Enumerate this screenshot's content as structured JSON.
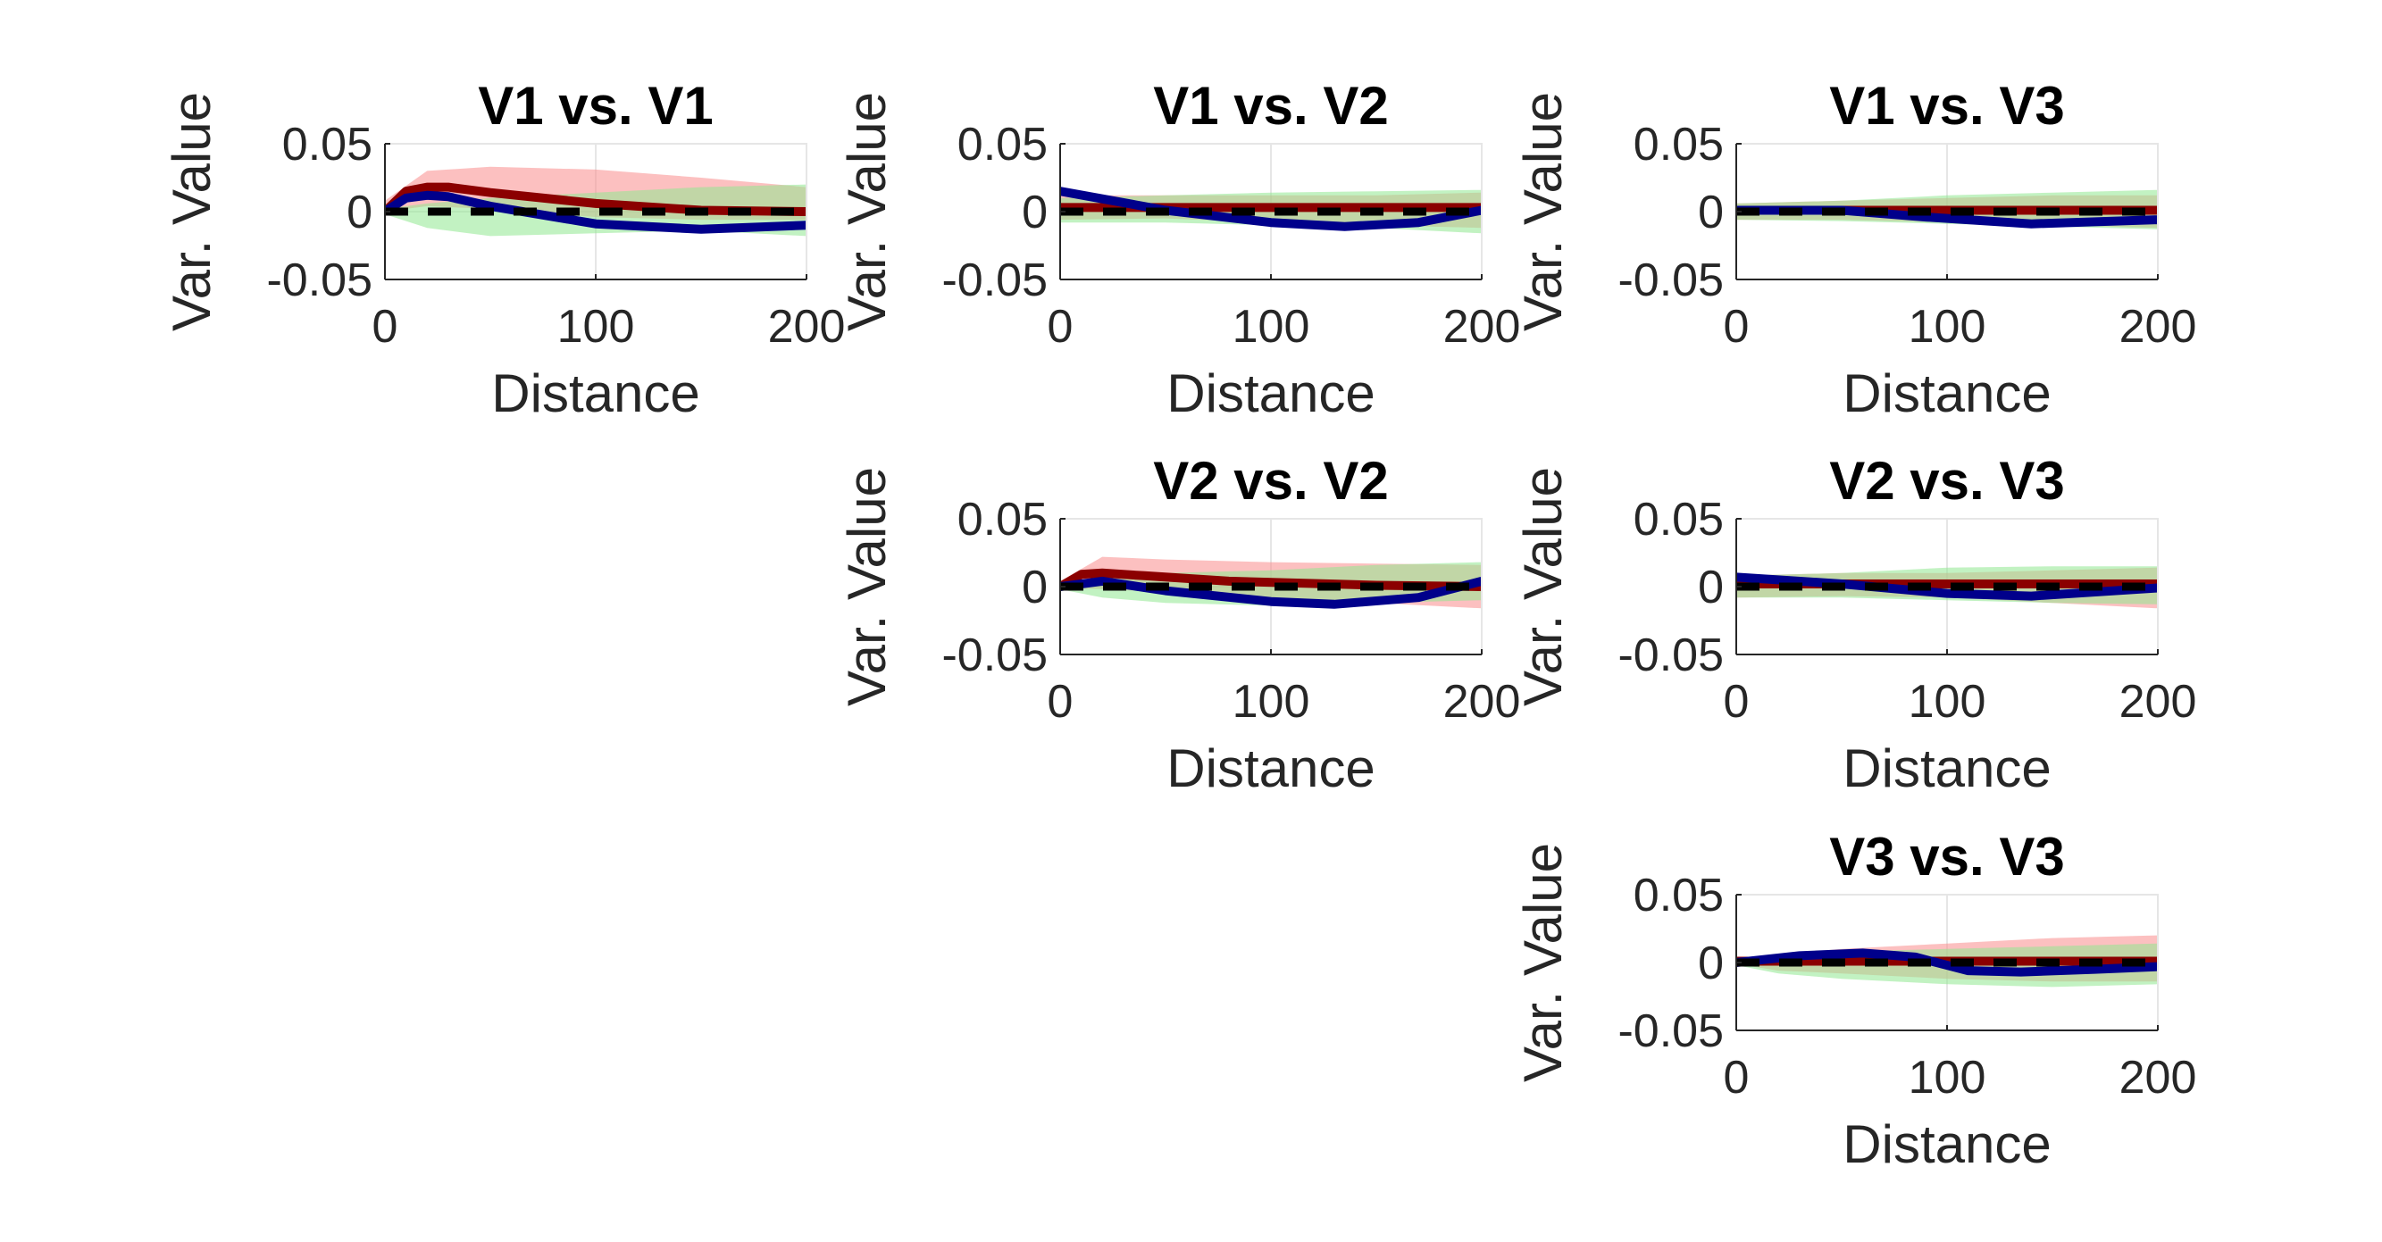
{
  "chart_data": [
    {
      "type": "line",
      "title": "V1 vs. V1",
      "xlabel": "Distance",
      "ylabel": "Var. Value",
      "xlim": [
        0,
        200
      ],
      "ylim": [
        -0.05,
        0.05
      ],
      "xticks": [
        "0",
        "100",
        "200"
      ],
      "yticks": [
        "0.05",
        "0",
        "-0.05"
      ],
      "grid": true,
      "series": [
        {
          "color": "#fa8c8c",
          "band": true,
          "x": [
            0,
            20,
            50,
            100,
            150,
            200
          ],
          "lower": [
            0,
            0.004,
            0.002,
            -0.004,
            -0.006,
            -0.006
          ],
          "upper": [
            0.008,
            0.03,
            0.033,
            0.031,
            0.025,
            0.018
          ]
        },
        {
          "color": "#8fe88f",
          "band": true,
          "x": [
            0,
            20,
            50,
            100,
            150,
            200
          ],
          "lower": [
            -0.002,
            -0.012,
            -0.018,
            -0.016,
            -0.014,
            -0.018
          ],
          "upper": [
            0.002,
            0.006,
            0.01,
            0.014,
            0.018,
            0.02
          ]
        },
        {
          "color": "#8b0000",
          "width": 10,
          "x": [
            0,
            10,
            20,
            30,
            50,
            100,
            150,
            200
          ],
          "y": [
            0,
            0.015,
            0.018,
            0.018,
            0.014,
            0.006,
            0.001,
            0
          ]
        },
        {
          "color": "#00008b",
          "width": 10,
          "x": [
            0,
            10,
            20,
            30,
            50,
            100,
            150,
            200
          ],
          "y": [
            0,
            0.01,
            0.012,
            0.011,
            0.004,
            -0.009,
            -0.013,
            -0.01
          ]
        },
        {
          "color": "#000000",
          "width": 9,
          "dash": true,
          "x": [
            0,
            200
          ],
          "y": [
            0,
            0
          ]
        }
      ]
    },
    {
      "type": "line",
      "title": "V1 vs. V2",
      "xlabel": "Distance",
      "ylabel": "Var. Value",
      "xlim": [
        0,
        200
      ],
      "ylim": [
        -0.05,
        0.05
      ],
      "xticks": [
        "0",
        "100",
        "200"
      ],
      "yticks": [
        "0.05",
        "0",
        "-0.05"
      ],
      "grid": true,
      "series": [
        {
          "color": "#fa8c8c",
          "band": true,
          "x": [
            0,
            50,
            100,
            150,
            200
          ],
          "lower": [
            -0.006,
            -0.005,
            -0.008,
            -0.01,
            -0.012
          ],
          "upper": [
            0.012,
            0.012,
            0.012,
            0.012,
            0.014
          ]
        },
        {
          "color": "#8fe88f",
          "band": true,
          "x": [
            0,
            50,
            100,
            150,
            200
          ],
          "lower": [
            -0.008,
            -0.008,
            -0.01,
            -0.012,
            -0.016
          ],
          "upper": [
            0.01,
            0.012,
            0.014,
            0.015,
            0.016
          ]
        },
        {
          "color": "#8b0000",
          "width": 10,
          "x": [
            0,
            200
          ],
          "y": [
            0.003,
            0.003
          ]
        },
        {
          "color": "#00008b",
          "width": 10,
          "x": [
            0,
            25,
            50,
            100,
            135,
            170,
            200
          ],
          "y": [
            0.015,
            0.008,
            0.001,
            -0.008,
            -0.011,
            -0.008,
            0.001
          ]
        },
        {
          "color": "#000000",
          "width": 9,
          "dash": true,
          "x": [
            0,
            200
          ],
          "y": [
            0,
            0
          ]
        }
      ]
    },
    {
      "type": "line",
      "title": "V1 vs. V3",
      "xlabel": "Distance",
      "ylabel": "Var. Value",
      "xlim": [
        0,
        200
      ],
      "ylim": [
        -0.05,
        0.05
      ],
      "xticks": [
        "0",
        "100",
        "200"
      ],
      "yticks": [
        "0.05",
        "0",
        "-0.05"
      ],
      "grid": true,
      "series": [
        {
          "color": "#fa8c8c",
          "band": true,
          "x": [
            0,
            50,
            100,
            150,
            200
          ],
          "lower": [
            -0.006,
            -0.006,
            -0.008,
            -0.01,
            -0.012
          ],
          "upper": [
            0.006,
            0.008,
            0.01,
            0.012,
            0.012
          ]
        },
        {
          "color": "#8fe88f",
          "band": true,
          "x": [
            0,
            50,
            100,
            150,
            200
          ],
          "lower": [
            -0.006,
            -0.007,
            -0.009,
            -0.011,
            -0.013
          ],
          "upper": [
            0.006,
            0.008,
            0.012,
            0.014,
            0.016
          ]
        },
        {
          "color": "#8b0000",
          "width": 10,
          "x": [
            0,
            200
          ],
          "y": [
            0.001,
            0.001
          ]
        },
        {
          "color": "#00008b",
          "width": 10,
          "x": [
            0,
            50,
            90,
            140,
            200
          ],
          "y": [
            0.001,
            0.001,
            -0.004,
            -0.009,
            -0.006
          ]
        },
        {
          "color": "#000000",
          "width": 9,
          "dash": true,
          "x": [
            0,
            200
          ],
          "y": [
            0,
            0
          ]
        }
      ]
    },
    {
      "type": "line",
      "title": "V2 vs. V2",
      "xlabel": "Distance",
      "ylabel": "Var. Value",
      "xlim": [
        0,
        200
      ],
      "ylim": [
        -0.05,
        0.05
      ],
      "xticks": [
        "0",
        "100",
        "200"
      ],
      "yticks": [
        "0.05",
        "0",
        "-0.05"
      ],
      "grid": true,
      "series": [
        {
          "color": "#fa8c8c",
          "band": true,
          "x": [
            0,
            20,
            50,
            100,
            150,
            200
          ],
          "lower": [
            -0.001,
            -0.002,
            -0.004,
            -0.008,
            -0.012,
            -0.016
          ],
          "upper": [
            0.004,
            0.022,
            0.02,
            0.018,
            0.017,
            0.016
          ]
        },
        {
          "color": "#8fe88f",
          "band": true,
          "x": [
            0,
            20,
            50,
            100,
            150,
            200
          ],
          "lower": [
            -0.002,
            -0.008,
            -0.012,
            -0.014,
            -0.012,
            -0.01
          ],
          "upper": [
            0.002,
            0.006,
            0.01,
            0.012,
            0.016,
            0.018
          ]
        },
        {
          "color": "#8b0000",
          "width": 10,
          "x": [
            0,
            10,
            20,
            40,
            80,
            150,
            200
          ],
          "y": [
            0,
            0.009,
            0.01,
            0.008,
            0.004,
            0.001,
            0
          ]
        },
        {
          "color": "#00008b",
          "width": 10,
          "x": [
            0,
            20,
            50,
            100,
            130,
            170,
            200
          ],
          "y": [
            0,
            0.004,
            -0.003,
            -0.011,
            -0.013,
            -0.008,
            0.004
          ]
        },
        {
          "color": "#000000",
          "width": 9,
          "dash": true,
          "x": [
            0,
            200
          ],
          "y": [
            0,
            0
          ]
        }
      ]
    },
    {
      "type": "line",
      "title": "V2 vs. V3",
      "xlabel": "Distance",
      "ylabel": "Var. Value",
      "xlim": [
        0,
        200
      ],
      "ylim": [
        -0.05,
        0.05
      ],
      "xticks": [
        "0",
        "100",
        "200"
      ],
      "yticks": [
        "0.05",
        "0",
        "-0.05"
      ],
      "grid": true,
      "series": [
        {
          "color": "#fa8c8c",
          "band": true,
          "x": [
            0,
            50,
            100,
            150,
            200
          ],
          "lower": [
            -0.008,
            -0.007,
            -0.008,
            -0.012,
            -0.016
          ],
          "upper": [
            0.008,
            0.01,
            0.01,
            0.012,
            0.014
          ]
        },
        {
          "color": "#8fe88f",
          "band": true,
          "x": [
            0,
            50,
            100,
            150,
            200
          ],
          "lower": [
            -0.008,
            -0.008,
            -0.01,
            -0.012,
            -0.013
          ],
          "upper": [
            0.008,
            0.01,
            0.014,
            0.015,
            0.015
          ]
        },
        {
          "color": "#8b0000",
          "width": 10,
          "x": [
            0,
            200
          ],
          "y": [
            0.002,
            0.002
          ]
        },
        {
          "color": "#00008b",
          "width": 10,
          "x": [
            0,
            50,
            100,
            140,
            200
          ],
          "y": [
            0.007,
            0.002,
            -0.005,
            -0.007,
            -0.001
          ]
        },
        {
          "color": "#000000",
          "width": 9,
          "dash": true,
          "x": [
            0,
            200
          ],
          "y": [
            0,
            0
          ]
        }
      ]
    },
    {
      "type": "line",
      "title": "V3 vs. V3",
      "xlabel": "Distance",
      "ylabel": "Var. Value",
      "xlim": [
        0,
        200
      ],
      "ylim": [
        -0.05,
        0.05
      ],
      "xticks": [
        "0",
        "100",
        "200"
      ],
      "yticks": [
        "0.05",
        "0",
        "-0.05"
      ],
      "grid": true,
      "series": [
        {
          "color": "#fa8c8c",
          "band": true,
          "x": [
            0,
            20,
            50,
            100,
            150,
            200
          ],
          "lower": [
            -0.001,
            -0.006,
            -0.008,
            -0.012,
            -0.014,
            -0.014
          ],
          "upper": [
            0.002,
            0.006,
            0.01,
            0.014,
            0.018,
            0.02
          ]
        },
        {
          "color": "#8fe88f",
          "band": true,
          "x": [
            0,
            20,
            50,
            100,
            150,
            200
          ],
          "lower": [
            -0.002,
            -0.008,
            -0.012,
            -0.016,
            -0.018,
            -0.016
          ],
          "upper": [
            0.002,
            0.004,
            0.008,
            0.01,
            0.012,
            0.014
          ]
        },
        {
          "color": "#8b0000",
          "width": 10,
          "x": [
            0,
            200
          ],
          "y": [
            0.001,
            0.001
          ]
        },
        {
          "color": "#00008b",
          "width": 10,
          "x": [
            0,
            30,
            60,
            85,
            110,
            135,
            170,
            200
          ],
          "y": [
            0,
            0.005,
            0.007,
            0.004,
            -0.006,
            -0.007,
            -0.005,
            -0.003
          ]
        },
        {
          "color": "#000000",
          "width": 9,
          "dash": true,
          "x": [
            0,
            200
          ],
          "y": [
            0,
            0
          ]
        }
      ]
    }
  ]
}
